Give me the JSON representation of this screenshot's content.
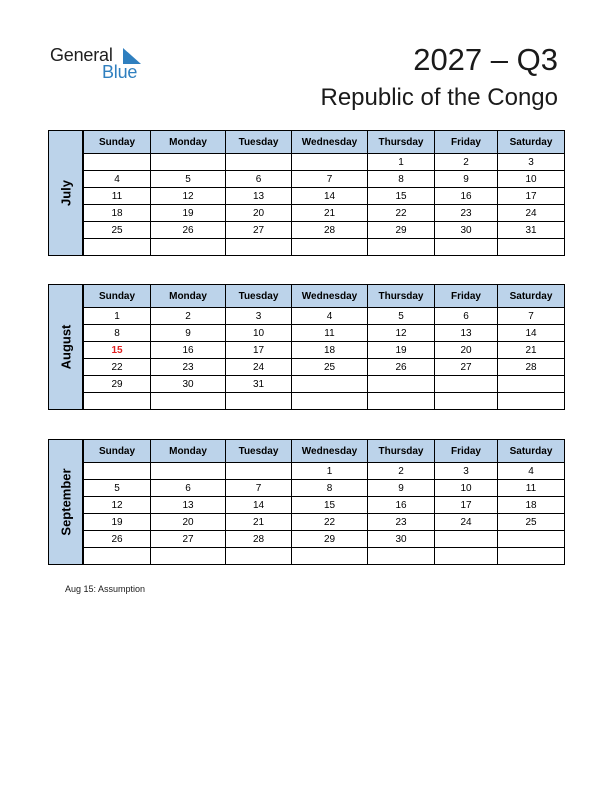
{
  "header": {
    "logo": {
      "word1": "General",
      "word2": "Blue",
      "accent": "#2f7fbf"
    },
    "year_quarter": "2027 – Q3",
    "country": "Republic of the Congo"
  },
  "weekday_names": [
    "Sunday",
    "Monday",
    "Tuesday",
    "Wednesday",
    "Thursday",
    "Friday",
    "Saturday"
  ],
  "months": [
    {
      "name": "July",
      "rows": [
        [
          "",
          "",
          "",
          "",
          "1",
          "2",
          "3"
        ],
        [
          "4",
          "5",
          "6",
          "7",
          "8",
          "9",
          "10"
        ],
        [
          "11",
          "12",
          "13",
          "14",
          "15",
          "16",
          "17"
        ],
        [
          "18",
          "19",
          "20",
          "21",
          "22",
          "23",
          "24"
        ],
        [
          "25",
          "26",
          "27",
          "28",
          "29",
          "30",
          "31"
        ],
        [
          "",
          "",
          "",
          "",
          "",
          "",
          ""
        ]
      ],
      "holidays": []
    },
    {
      "name": "August",
      "rows": [
        [
          "1",
          "2",
          "3",
          "4",
          "5",
          "6",
          "7"
        ],
        [
          "8",
          "9",
          "10",
          "11",
          "12",
          "13",
          "14"
        ],
        [
          "15",
          "16",
          "17",
          "18",
          "19",
          "20",
          "21"
        ],
        [
          "22",
          "23",
          "24",
          "25",
          "26",
          "27",
          "28"
        ],
        [
          "29",
          "30",
          "31",
          "",
          "",
          "",
          ""
        ],
        [
          "",
          "",
          "",
          "",
          "",
          "",
          ""
        ]
      ],
      "holidays": [
        "15"
      ]
    },
    {
      "name": "September",
      "rows": [
        [
          "",
          "",
          "",
          "1",
          "2",
          "3",
          "4"
        ],
        [
          "5",
          "6",
          "7",
          "8",
          "9",
          "10",
          "11"
        ],
        [
          "12",
          "13",
          "14",
          "15",
          "16",
          "17",
          "18"
        ],
        [
          "19",
          "20",
          "21",
          "22",
          "23",
          "24",
          "25"
        ],
        [
          "26",
          "27",
          "28",
          "29",
          "30",
          "",
          ""
        ],
        [
          "",
          "",
          "",
          "",
          "",
          "",
          ""
        ]
      ],
      "holidays": []
    }
  ],
  "holiday_color": "#e02020",
  "header_fill": "#bcd3ea",
  "notes": [
    "Aug 15: Assumption"
  ]
}
